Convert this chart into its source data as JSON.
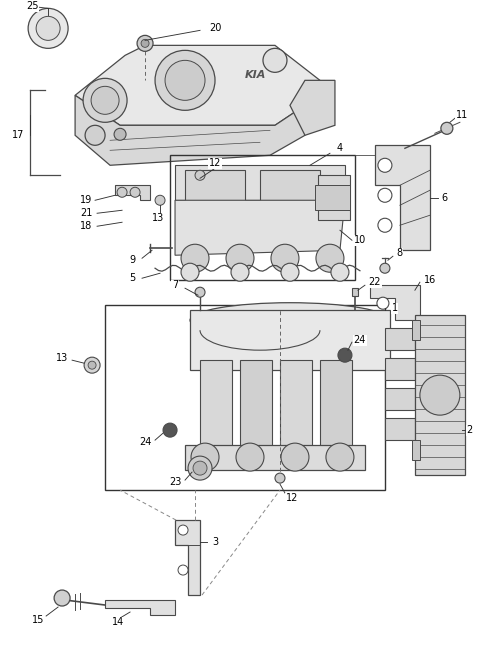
{
  "bg_color": "#ffffff",
  "line_color": "#4a4a4a",
  "fig_width": 4.8,
  "fig_height": 6.56,
  "dpi": 100
}
